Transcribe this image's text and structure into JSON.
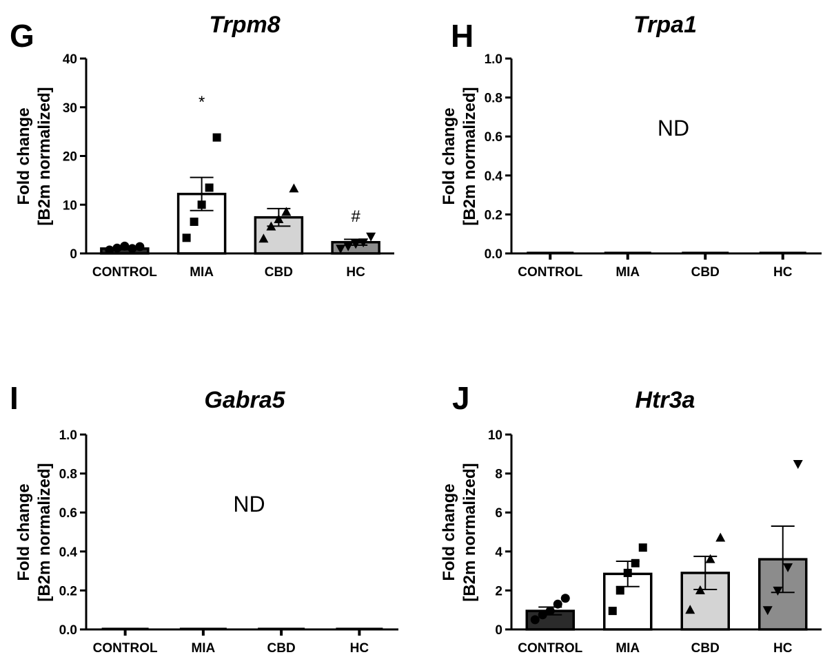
{
  "chart_data": [
    {
      "panel": "G",
      "type": "bar",
      "title": "Trpm8",
      "ylabel_line1": "Fold change",
      "ylabel_line2": "[B2m normalized]",
      "categories": [
        "CONTROL",
        "MIA",
        "CBD",
        "HC"
      ],
      "ylim": [
        0,
        40
      ],
      "yticks": [
        0,
        10,
        20,
        30,
        40
      ],
      "tick_decimals": 0,
      "values": [
        1.0,
        12.2,
        7.4,
        2.3
      ],
      "sem": [
        0.2,
        3.4,
        1.8,
        0.6
      ],
      "points": [
        [
          0.7,
          1.1,
          1.5,
          1.0,
          1.4
        ],
        [
          3.2,
          6.5,
          10.0,
          13.5,
          23.8
        ],
        [
          3.0,
          5.5,
          7.0,
          8.5,
          13.3
        ],
        [
          1.0,
          1.5,
          2.0,
          2.3,
          3.5
        ]
      ],
      "markers": [
        "circle",
        "square",
        "triangle-up",
        "triangle-down"
      ],
      "bar_colors": [
        "#2b2b2b",
        "#ffffff",
        "#d4d4d4",
        "#8c8c8c"
      ],
      "annotations": [
        {
          "category": "MIA",
          "y": 30,
          "text": "*"
        },
        {
          "category": "HC",
          "y": 6.5,
          "text": "#"
        }
      ],
      "note": ""
    },
    {
      "panel": "H",
      "type": "bar",
      "title": "Trpa1",
      "ylabel_line1": "Fold change",
      "ylabel_line2": "[B2m normalized]",
      "categories": [
        "CONTROL",
        "MIA",
        "CBD",
        "HC"
      ],
      "ylim": [
        0,
        1
      ],
      "yticks": [
        0,
        0.2,
        0.4,
        0.6,
        0.8,
        1.0
      ],
      "tick_decimals": 1,
      "values": [
        0,
        0,
        0,
        0
      ],
      "sem": [
        0,
        0,
        0,
        0
      ],
      "points": [
        [],
        [],
        [],
        []
      ],
      "markers": [
        "circle",
        "square",
        "triangle-up",
        "triangle-down"
      ],
      "bar_colors": [
        "#2b2b2b",
        "#ffffff",
        "#d4d4d4",
        "#8c8c8c"
      ],
      "annotations": [],
      "note": "ND"
    },
    {
      "panel": "I",
      "type": "bar",
      "title": "Gabra5",
      "ylabel_line1": "Fold change",
      "ylabel_line2": "[B2m normalized]",
      "categories": [
        "CONTROL",
        "MIA",
        "CBD",
        "HC"
      ],
      "ylim": [
        0,
        1
      ],
      "yticks": [
        0,
        0.2,
        0.4,
        0.6,
        0.8,
        1.0
      ],
      "tick_decimals": 1,
      "values": [
        0,
        0,
        0,
        0
      ],
      "sem": [
        0,
        0,
        0,
        0
      ],
      "points": [
        [],
        [],
        [],
        []
      ],
      "markers": [
        "circle",
        "square",
        "triangle-up",
        "triangle-down"
      ],
      "bar_colors": [
        "#2b2b2b",
        "#ffffff",
        "#d4d4d4",
        "#8c8c8c"
      ],
      "annotations": [],
      "note": "ND"
    },
    {
      "panel": "J",
      "type": "bar",
      "title": "Htr3a",
      "ylabel_line1": "Fold change",
      "ylabel_line2": "[B2m normalized]",
      "categories": [
        "CONTROL",
        "MIA",
        "CBD",
        "HC"
      ],
      "ylim": [
        0,
        10
      ],
      "yticks": [
        0,
        2,
        4,
        6,
        8,
        10
      ],
      "tick_decimals": 0,
      "values": [
        0.95,
        2.85,
        2.9,
        3.6
      ],
      "sem": [
        0.2,
        0.65,
        0.85,
        1.7
      ],
      "points": [
        [
          0.5,
          0.75,
          0.95,
          1.3,
          1.6
        ],
        [
          0.95,
          2.0,
          2.9,
          3.4,
          4.2
        ],
        [
          1.0,
          2.0,
          3.6,
          4.7
        ],
        [
          1.0,
          2.0,
          3.2,
          8.5
        ]
      ],
      "markers": [
        "circle",
        "square",
        "triangle-up",
        "triangle-down"
      ],
      "bar_colors": [
        "#2b2b2b",
        "#ffffff",
        "#d4d4d4",
        "#8c8c8c"
      ],
      "annotations": [],
      "note": ""
    }
  ]
}
